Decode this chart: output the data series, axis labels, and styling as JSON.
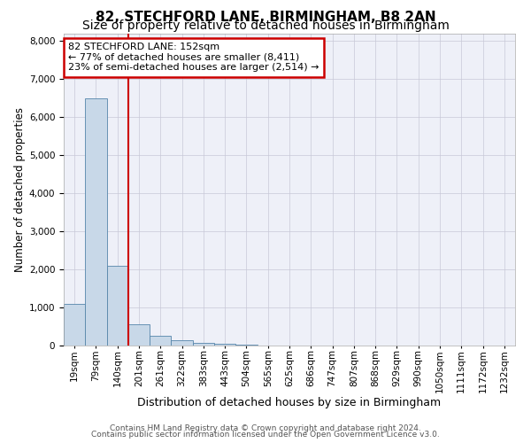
{
  "title1": "82, STECHFORD LANE, BIRMINGHAM, B8 2AN",
  "title2": "Size of property relative to detached houses in Birmingham",
  "xlabel": "Distribution of detached houses by size in Birmingham",
  "ylabel": "Number of detached properties",
  "footer1": "Contains HM Land Registry data © Crown copyright and database right 2024.",
  "footer2": "Contains public sector information licensed under the Open Government Licence v3.0.",
  "annotation_title": "82 STECHFORD LANE: 152sqm",
  "annotation_line1": "← 77% of detached houses are smaller (8,411)",
  "annotation_line2": "23% of semi-detached houses are larger (2,514) →",
  "bar_categories": [
    "19sqm",
    "79sqm",
    "140sqm",
    "201sqm",
    "261sqm",
    "322sqm",
    "383sqm",
    "443sqm",
    "504sqm",
    "565sqm",
    "625sqm",
    "686sqm",
    "747sqm",
    "807sqm",
    "868sqm",
    "929sqm",
    "990sqm",
    "1050sqm",
    "1111sqm",
    "1172sqm",
    "1232sqm"
  ],
  "bar_values": [
    1100,
    6500,
    2100,
    550,
    250,
    130,
    80,
    50,
    20,
    10,
    5,
    3,
    2,
    1,
    1,
    1,
    0,
    0,
    0,
    0,
    0
  ],
  "bar_color": "#c8d8e8",
  "bar_edge_color": "#5585aa",
  "vline_color": "#cc0000",
  "vline_x": 2.5,
  "annotation_box_color": "#cc0000",
  "ylim": [
    0,
    8200
  ],
  "yticks": [
    0,
    1000,
    2000,
    3000,
    4000,
    5000,
    6000,
    7000,
    8000
  ],
  "grid_color": "#c8c8d8",
  "bg_color": "#eef0f8",
  "title_fontsize": 11,
  "subtitle_fontsize": 10,
  "xlabel_fontsize": 9,
  "ylabel_fontsize": 8.5,
  "tick_fontsize": 7.5,
  "footer_fontsize": 6.5
}
